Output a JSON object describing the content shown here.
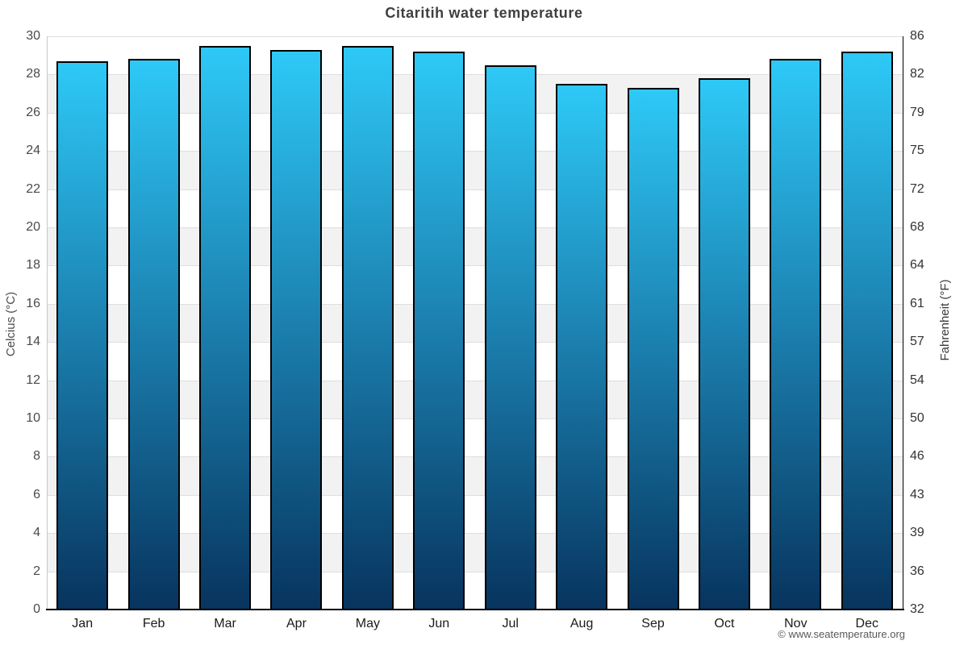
{
  "title": "Citaritih water temperature",
  "copyright": "© www.seatemperature.org",
  "axes": {
    "left_title": "Celcius (°C)",
    "right_title": "Fahrenheit (°F)"
  },
  "chart_data": {
    "type": "bar",
    "title": "Citaritih water temperature",
    "categories": [
      "Jan",
      "Feb",
      "Mar",
      "Apr",
      "May",
      "Jun",
      "Jul",
      "Aug",
      "Sep",
      "Oct",
      "Nov",
      "Dec"
    ],
    "series": [
      {
        "name": "Water temperature (°C)",
        "values": [
          28.7,
          28.8,
          29.5,
          29.3,
          29.5,
          29.2,
          28.5,
          27.5,
          27.3,
          27.8,
          28.8,
          29.2
        ]
      }
    ],
    "xlabel": "",
    "ylabel_left": "Celcius (°C)",
    "ylabel_right": "Fahrenheit (°F)",
    "ylim": [
      0,
      30
    ],
    "celsius_ticks": [
      0,
      2,
      4,
      6,
      8,
      10,
      12,
      14,
      16,
      18,
      20,
      22,
      24,
      26,
      28,
      30
    ],
    "fahrenheit_tick_labels": [
      "32",
      "36",
      "39",
      "43",
      "46",
      "50",
      "54",
      "57",
      "61",
      "64",
      "68",
      "72",
      "75",
      "79",
      "82",
      "86"
    ],
    "grid": true,
    "legend": "none"
  },
  "colors": {
    "bar_gradient_top": "#2ec9f7",
    "bar_gradient_mid": "#1b7ead",
    "bar_gradient_bottom": "#07345e",
    "bar_border": "#000000",
    "band_gray": "#f2f2f2",
    "gridline": "#dedede",
    "axis_left_line": "#c8c8c8",
    "axis_right_line": "#000000",
    "x_axis_line": "#000000"
  }
}
